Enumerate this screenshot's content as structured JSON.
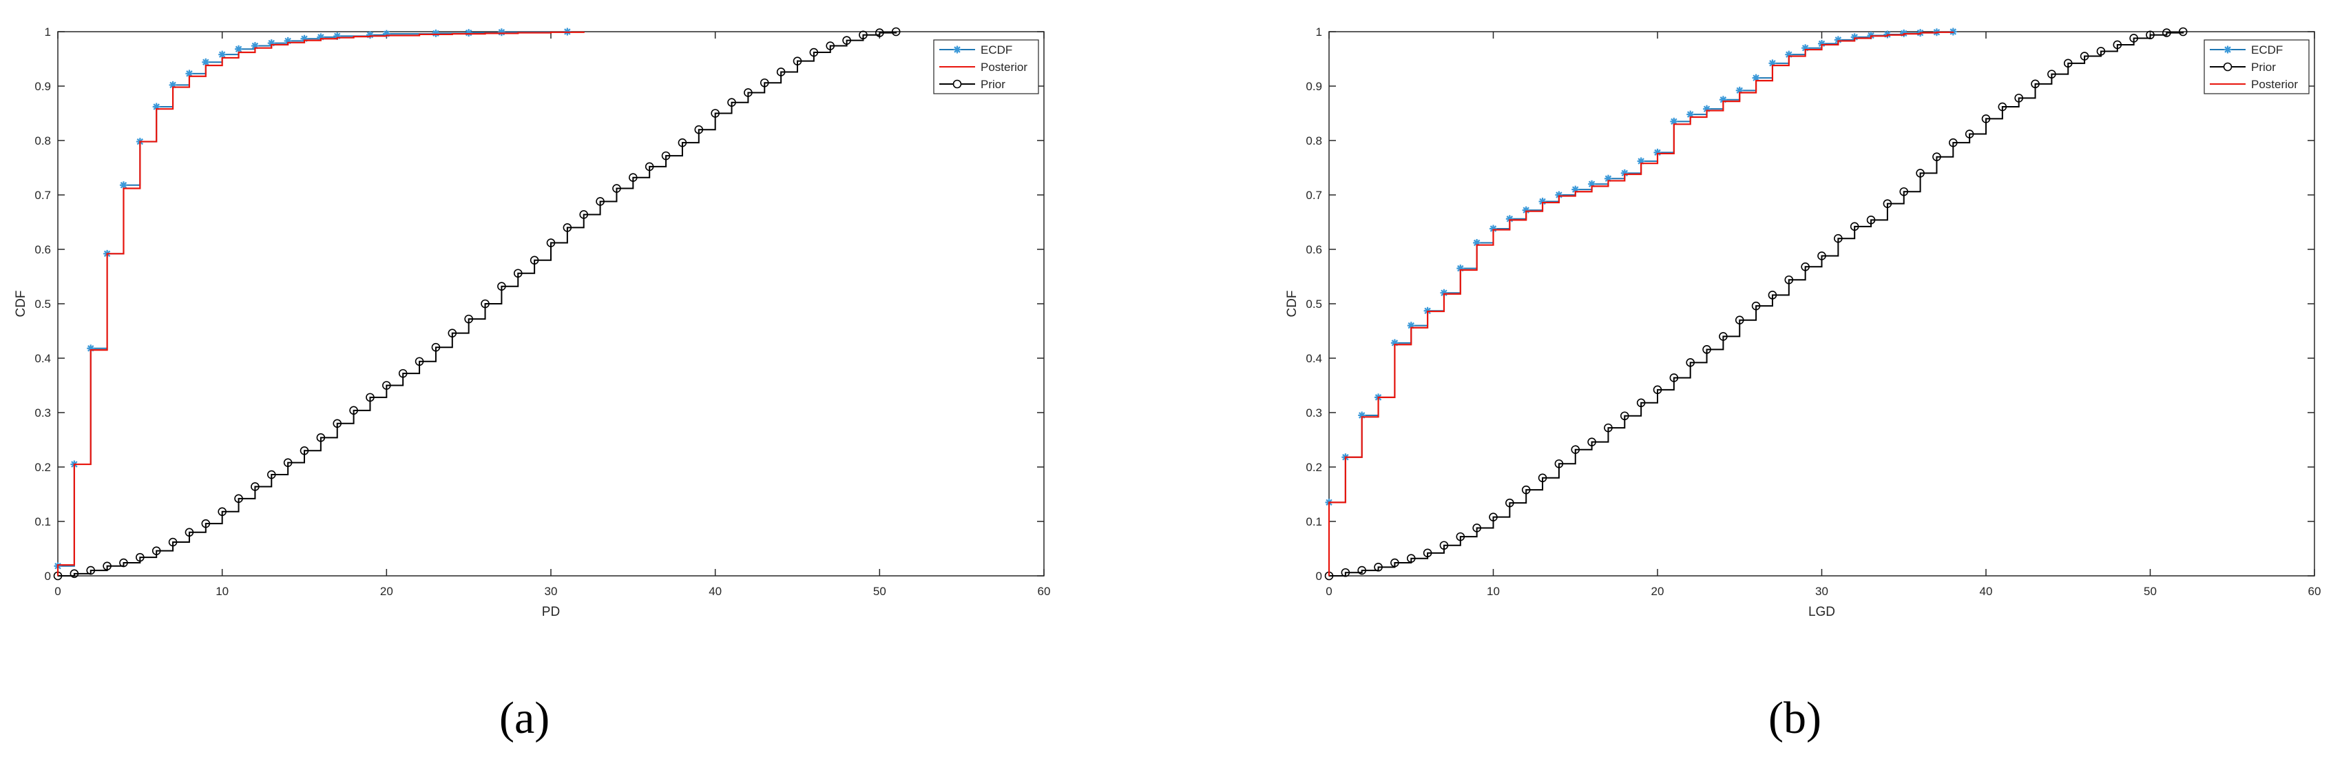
{
  "panels": [
    {
      "caption": "(a)"
    },
    {
      "caption": "(b)"
    }
  ],
  "chart_data": [
    {
      "type": "line",
      "title": "",
      "xlabel": "PD",
      "ylabel": "CDF",
      "xlim": [
        0,
        60
      ],
      "ylim": [
        0,
        1
      ],
      "xticks": [
        0,
        10,
        20,
        30,
        40,
        50,
        60
      ],
      "yticks": [
        0,
        0.1,
        0.2,
        0.3,
        0.4,
        0.5,
        0.6,
        0.7,
        0.8,
        0.9,
        1
      ],
      "xtick_labels": [
        "0",
        "10",
        "20",
        "30",
        "40",
        "50",
        "60"
      ],
      "ytick_labels": [
        "0",
        "0.1",
        "0.2",
        "0.3",
        "0.4",
        "0.5",
        "0.6",
        "0.7",
        "0.8",
        "0.9",
        "1"
      ],
      "grid": false,
      "legend_position": "top-right",
      "series": [
        {
          "name": "ECDF",
          "style": "stairs-marker-star",
          "color": "#1f77b4",
          "x": [
            0,
            1,
            2,
            3,
            4,
            5,
            6,
            7,
            8,
            9,
            10,
            11,
            12,
            13,
            14,
            15,
            16,
            17,
            19,
            20,
            23,
            25,
            27,
            31
          ],
          "y": [
            0.018,
            0.205,
            0.418,
            0.592,
            0.718,
            0.798,
            0.862,
            0.902,
            0.923,
            0.944,
            0.958,
            0.968,
            0.974,
            0.979,
            0.983,
            0.987,
            0.99,
            0.992,
            0.994,
            0.996,
            0.997,
            0.998,
            0.999,
            1.0
          ]
        },
        {
          "name": "Posterior",
          "style": "stairs",
          "color": "#e8140c",
          "x": [
            0,
            1,
            2,
            3,
            4,
            5,
            6,
            7,
            8,
            9,
            10,
            11,
            12,
            13,
            14,
            15,
            16,
            17,
            18,
            19,
            20,
            22,
            24,
            26,
            28,
            30,
            32
          ],
          "y": [
            0.02,
            0.205,
            0.415,
            0.592,
            0.712,
            0.798,
            0.858,
            0.898,
            0.918,
            0.938,
            0.952,
            0.962,
            0.97,
            0.976,
            0.98,
            0.984,
            0.987,
            0.989,
            0.991,
            0.992,
            0.993,
            0.995,
            0.996,
            0.997,
            0.998,
            0.999,
            1.0
          ]
        },
        {
          "name": "Prior",
          "style": "stairs-marker-circle",
          "color": "#000000",
          "x": [
            0,
            1,
            2,
            3,
            4,
            5,
            6,
            7,
            8,
            9,
            10,
            11,
            12,
            13,
            14,
            15,
            16,
            17,
            18,
            19,
            20,
            21,
            22,
            23,
            24,
            25,
            26,
            27,
            28,
            29,
            30,
            31,
            32,
            33,
            34,
            35,
            36,
            37,
            38,
            39,
            40,
            41,
            42,
            43,
            44,
            45,
            46,
            47,
            48,
            49,
            50,
            51
          ],
          "y": [
            0.0,
            0.004,
            0.01,
            0.018,
            0.024,
            0.034,
            0.046,
            0.062,
            0.08,
            0.096,
            0.118,
            0.142,
            0.164,
            0.186,
            0.208,
            0.23,
            0.254,
            0.28,
            0.304,
            0.328,
            0.35,
            0.372,
            0.394,
            0.42,
            0.446,
            0.472,
            0.5,
            0.532,
            0.556,
            0.58,
            0.612,
            0.64,
            0.664,
            0.688,
            0.712,
            0.732,
            0.752,
            0.772,
            0.796,
            0.82,
            0.85,
            0.87,
            0.888,
            0.906,
            0.926,
            0.946,
            0.962,
            0.974,
            0.984,
            0.994,
            0.998,
            1.0
          ]
        }
      ]
    },
    {
      "type": "line",
      "title": "",
      "xlabel": "LGD",
      "ylabel": "CDF",
      "xlim": [
        0,
        60
      ],
      "ylim": [
        0,
        1
      ],
      "xticks": [
        0,
        10,
        20,
        30,
        40,
        50,
        60
      ],
      "yticks": [
        0,
        0.1,
        0.2,
        0.3,
        0.4,
        0.5,
        0.6,
        0.7,
        0.8,
        0.9,
        1
      ],
      "xtick_labels": [
        "0",
        "10",
        "20",
        "30",
        "40",
        "50",
        "60"
      ],
      "ytick_labels": [
        "0",
        "0.1",
        "0.2",
        "0.3",
        "0.4",
        "0.5",
        "0.6",
        "0.7",
        "0.8",
        "0.9",
        "1"
      ],
      "grid": false,
      "legend_position": "top-right",
      "series": [
        {
          "name": "ECDF",
          "style": "stairs-marker-star",
          "color": "#1f77b4",
          "x": [
            0,
            1,
            2,
            3,
            4,
            5,
            6,
            7,
            8,
            9,
            10,
            11,
            12,
            13,
            14,
            15,
            16,
            17,
            18,
            19,
            20,
            21,
            22,
            23,
            24,
            25,
            26,
            27,
            28,
            29,
            30,
            31,
            32,
            33,
            34,
            35,
            36,
            37,
            38
          ],
          "y": [
            0.135,
            0.218,
            0.295,
            0.328,
            0.428,
            0.46,
            0.487,
            0.52,
            0.565,
            0.612,
            0.638,
            0.656,
            0.672,
            0.688,
            0.7,
            0.71,
            0.72,
            0.73,
            0.74,
            0.762,
            0.778,
            0.835,
            0.848,
            0.858,
            0.875,
            0.892,
            0.915,
            0.942,
            0.958,
            0.97,
            0.978,
            0.985,
            0.99,
            0.993,
            0.995,
            0.997,
            0.998,
            0.999,
            1.0
          ]
        },
        {
          "name": "Prior",
          "style": "stairs-marker-circle",
          "color": "#000000",
          "x": [
            0,
            1,
            2,
            3,
            4,
            5,
            6,
            7,
            8,
            9,
            10,
            11,
            12,
            13,
            14,
            15,
            16,
            17,
            18,
            19,
            20,
            21,
            22,
            23,
            24,
            25,
            26,
            27,
            28,
            29,
            30,
            31,
            32,
            33,
            34,
            35,
            36,
            37,
            38,
            39,
            40,
            41,
            42,
            43,
            44,
            45,
            46,
            47,
            48,
            49,
            50,
            51,
            52
          ],
          "y": [
            0.0,
            0.006,
            0.01,
            0.016,
            0.024,
            0.032,
            0.042,
            0.056,
            0.072,
            0.088,
            0.108,
            0.134,
            0.158,
            0.18,
            0.206,
            0.232,
            0.246,
            0.272,
            0.294,
            0.318,
            0.342,
            0.364,
            0.392,
            0.416,
            0.44,
            0.47,
            0.496,
            0.516,
            0.544,
            0.568,
            0.588,
            0.62,
            0.642,
            0.654,
            0.684,
            0.706,
            0.74,
            0.77,
            0.796,
            0.812,
            0.84,
            0.862,
            0.878,
            0.904,
            0.922,
            0.942,
            0.955,
            0.964,
            0.976,
            0.988,
            0.994,
            0.998,
            1.0
          ]
        },
        {
          "name": "Posterior",
          "style": "stairs",
          "color": "#e8140c",
          "x": [
            0,
            1,
            2,
            3,
            4,
            5,
            6,
            7,
            8,
            9,
            10,
            11,
            12,
            13,
            14,
            15,
            16,
            17,
            18,
            19,
            20,
            21,
            22,
            23,
            24,
            25,
            26,
            27,
            28,
            29,
            30,
            31,
            32,
            33,
            34,
            35,
            36,
            37,
            38
          ],
          "y": [
            0.135,
            0.218,
            0.292,
            0.328,
            0.425,
            0.456,
            0.486,
            0.518,
            0.562,
            0.608,
            0.636,
            0.654,
            0.67,
            0.686,
            0.698,
            0.706,
            0.716,
            0.726,
            0.738,
            0.758,
            0.776,
            0.83,
            0.843,
            0.855,
            0.872,
            0.888,
            0.91,
            0.938,
            0.955,
            0.967,
            0.976,
            0.983,
            0.988,
            0.992,
            0.994,
            0.996,
            0.998,
            0.999,
            1.0
          ]
        }
      ]
    }
  ]
}
